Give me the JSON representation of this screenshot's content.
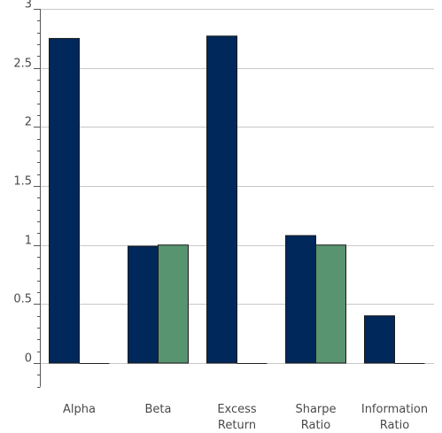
{
  "chart_data": {
    "type": "bar",
    "title": "",
    "xlabel": "",
    "ylabel": "",
    "categories": [
      [
        "Alpha"
      ],
      [
        "Beta"
      ],
      [
        "Excess",
        "Return"
      ],
      [
        "Sharpe",
        "Ratio"
      ],
      [
        "Information",
        "Ratio"
      ]
    ],
    "series": [
      {
        "color": "#00285a",
        "values": [
          2.75,
          0.99,
          2.77,
          1.08,
          0.4
        ]
      },
      {
        "color": "#589470",
        "values": [
          0,
          1.0,
          0,
          1.0,
          0
        ]
      }
    ],
    "ylim": [
      -0.2,
      3
    ],
    "yticks": [
      0,
      0.5,
      1,
      1.5,
      2,
      2.5,
      3
    ],
    "ytick_labels": [
      "0",
      "0.5",
      "1",
      "1.5",
      "2",
      "2.5",
      "3"
    ],
    "minor_tick_step": 0.1,
    "grid": true,
    "legend": "none"
  }
}
